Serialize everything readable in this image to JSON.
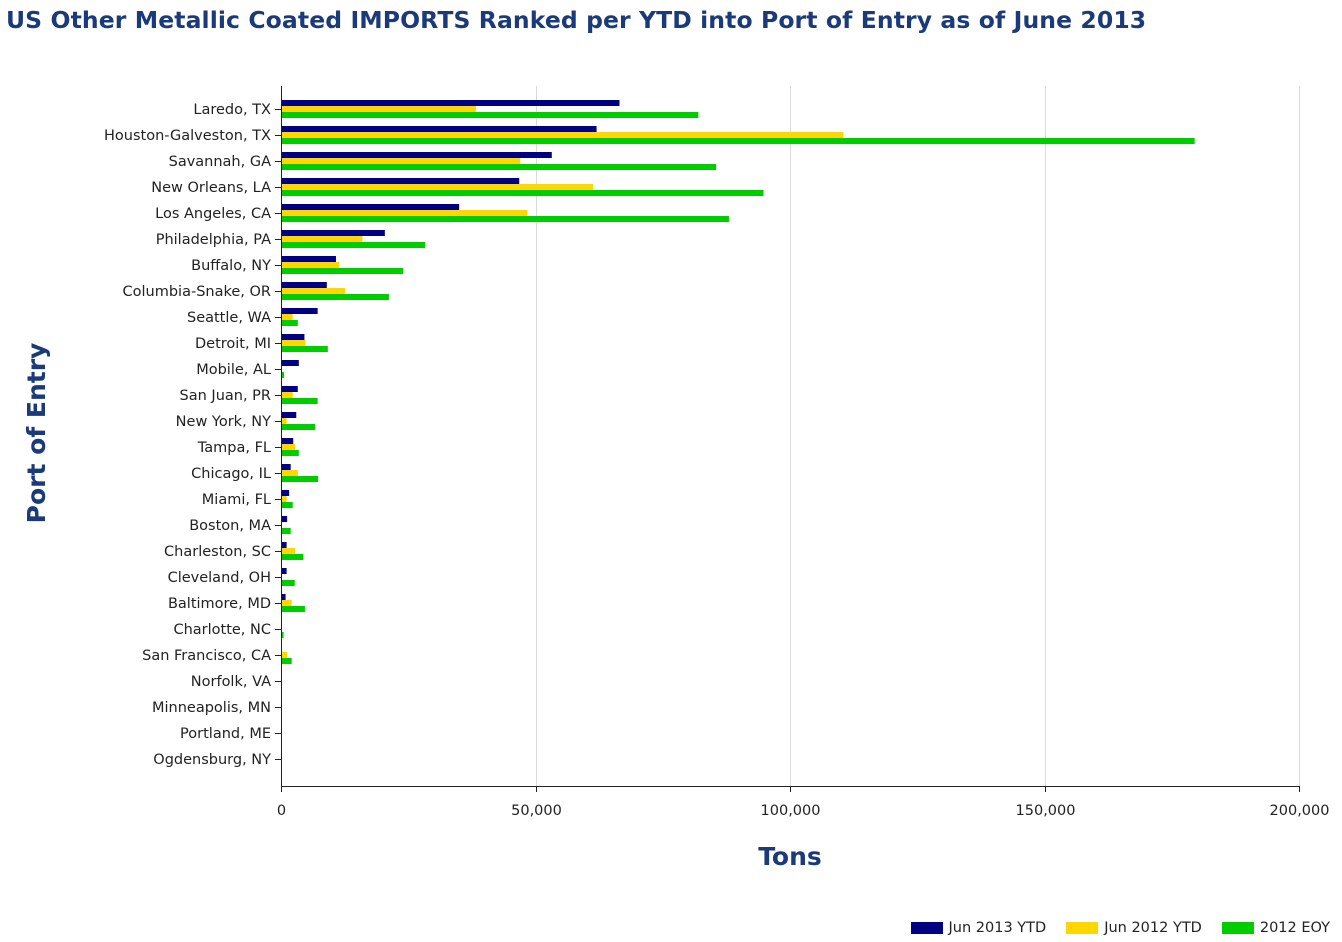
{
  "chart_data": {
    "type": "bar",
    "orientation": "horizontal",
    "title": "US Other Metallic Coated IMPORTS Ranked per YTD into Port of Entry as of June 2013",
    "xlabel": "Tons",
    "ylabel": "Port of Entry",
    "xlim": [
      0,
      200000
    ],
    "xticks": [
      0,
      50000,
      100000,
      150000,
      200000
    ],
    "xtick_labels": [
      "0",
      "50,000",
      "100,000",
      "150,000",
      "200,000"
    ],
    "grid": true,
    "legend_position": "bottom-right",
    "categories": [
      "Laredo, TX",
      "Houston-Galveston, TX",
      "Savannah, GA",
      "New Orleans, LA",
      "Los Angeles, CA",
      "Philadelphia, PA",
      "Buffalo, NY",
      "Columbia-Snake, OR",
      "Seattle, WA",
      "Detroit, MI",
      "Mobile, AL",
      "San Juan, PR",
      "New York, NY",
      "Tampa, FL",
      "Chicago, IL",
      "Miami, FL",
      "Boston, MA",
      "Charleston, SC",
      "Cleveland, OH",
      "Baltimore, MD",
      "Charlotte, NC",
      "San Francisco, CA",
      "Norfolk, VA",
      "Minneapolis, MN",
      "Portland, ME",
      "Ogdensburg, NY"
    ],
    "series": [
      {
        "name": "Jun 2013 YTD",
        "color": "#000080",
        "values": [
          66500,
          62000,
          53200,
          46800,
          35000,
          20400,
          10800,
          9000,
          7200,
          4600,
          3500,
          3300,
          3000,
          2400,
          1900,
          1600,
          1200,
          1100,
          1100,
          900,
          0,
          0,
          0,
          0,
          0,
          0
        ]
      },
      {
        "name": "Jun 2012 YTD",
        "color": "#ffd700",
        "values": [
          38300,
          110500,
          47000,
          61300,
          48400,
          16000,
          11400,
          12600,
          2300,
          4800,
          0,
          2300,
          1100,
          2800,
          3300,
          1100,
          0,
          2800,
          0,
          2100,
          0,
          1200,
          0,
          0,
          0,
          0
        ]
      },
      {
        "name": "2012 EOY",
        "color": "#00cc00",
        "values": [
          82000,
          179500,
          85500,
          94800,
          88000,
          28300,
          24000,
          21200,
          3300,
          9200,
          600,
          7200,
          6700,
          3500,
          7300,
          2300,
          1900,
          4400,
          2700,
          4700,
          500,
          2100,
          0,
          0,
          0,
          0
        ]
      }
    ]
  }
}
